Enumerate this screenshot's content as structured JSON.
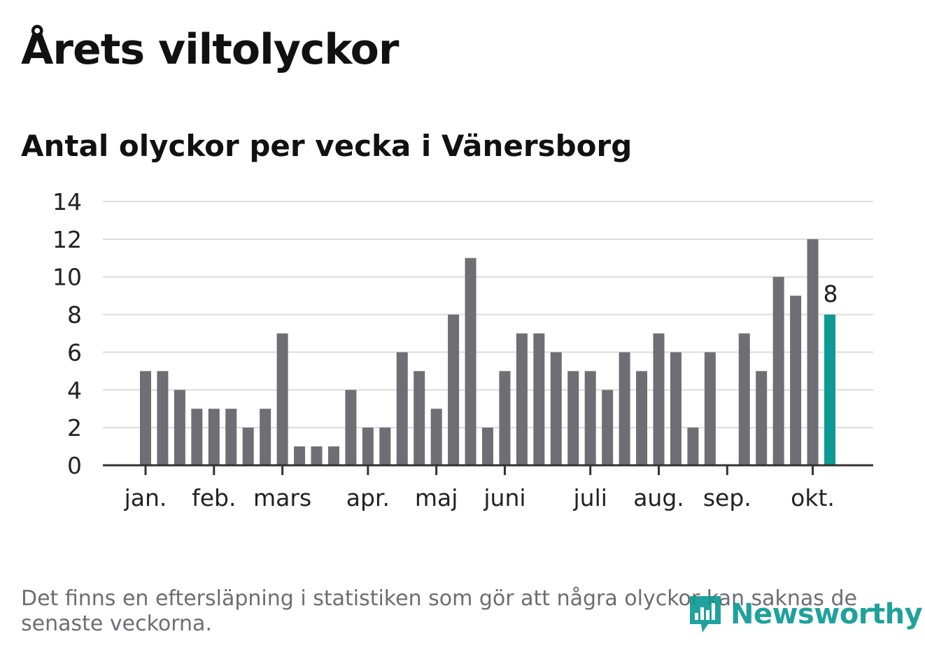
{
  "header": {
    "title": "Årets viltolyckor",
    "subtitle": "Antal olyckor per vecka i Vänersborg"
  },
  "footer": {
    "note": "Det finns en eftersläpning i statistiken som gör att några olyckor kan saknas de senaste veckorna.",
    "logo_text": "Newsworthy"
  },
  "colors": {
    "bar": "#6e6e74",
    "highlight": "#0e9a94",
    "grid": "#dcdcdc",
    "axis": "#333333"
  },
  "chart_data": {
    "type": "bar",
    "title": "Årets viltolyckor",
    "subtitle": "Antal olyckor per vecka i Vänersborg",
    "xlabel": "",
    "ylabel": "",
    "ylim": [
      0,
      14
    ],
    "yticks": [
      0,
      2,
      4,
      6,
      8,
      10,
      12,
      14
    ],
    "grid": true,
    "values": [
      5,
      5,
      4,
      3,
      3,
      3,
      2,
      3,
      7,
      1,
      1,
      1,
      4,
      2,
      2,
      6,
      5,
      3,
      8,
      11,
      2,
      5,
      7,
      7,
      6,
      5,
      5,
      4,
      6,
      5,
      7,
      6,
      2,
      6,
      0,
      7,
      5,
      10,
      9,
      12,
      8
    ],
    "highlight_index": 40,
    "highlight_label": "8",
    "month_ticks": [
      {
        "label": "jan.",
        "week_index": 0
      },
      {
        "label": "feb.",
        "week_index": 4
      },
      {
        "label": "mars",
        "week_index": 8
      },
      {
        "label": "apr.",
        "week_index": 13
      },
      {
        "label": "maj",
        "week_index": 17
      },
      {
        "label": "juni",
        "week_index": 21
      },
      {
        "label": "juli",
        "week_index": 26
      },
      {
        "label": "aug.",
        "week_index": 30
      },
      {
        "label": "sep.",
        "week_index": 34
      },
      {
        "label": "okt.",
        "week_index": 39
      }
    ]
  }
}
